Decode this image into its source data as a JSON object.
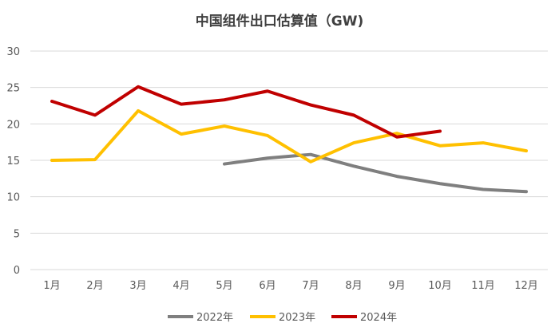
{
  "chart_data": {
    "type": "line",
    "title": "中国组件出口估算值（GW)",
    "xlabel": "",
    "ylabel": "",
    "categories": [
      "1月",
      "2月",
      "3月",
      "4月",
      "5月",
      "6月",
      "7月",
      "8月",
      "9月",
      "10月",
      "11月",
      "12月"
    ],
    "ylim": [
      0,
      30
    ],
    "yticks": [
      0,
      5,
      10,
      15,
      20,
      25,
      30
    ],
    "grid": true,
    "legend_position": "bottom",
    "series": [
      {
        "name": "2022年",
        "color": "#7f7f7f",
        "values": [
          null,
          null,
          null,
          null,
          14.5,
          15.3,
          15.8,
          14.2,
          12.8,
          11.8,
          11.0,
          10.7
        ]
      },
      {
        "name": "2023年",
        "color": "#ffc000",
        "values": [
          15.0,
          15.1,
          21.8,
          18.6,
          19.7,
          18.4,
          14.8,
          17.4,
          18.7,
          17.0,
          17.4,
          16.3
        ]
      },
      {
        "name": "2024年",
        "color": "#c00000",
        "values": [
          23.1,
          21.2,
          25.1,
          22.7,
          23.3,
          24.5,
          22.6,
          21.2,
          18.2,
          19.0,
          null,
          null
        ]
      }
    ]
  }
}
